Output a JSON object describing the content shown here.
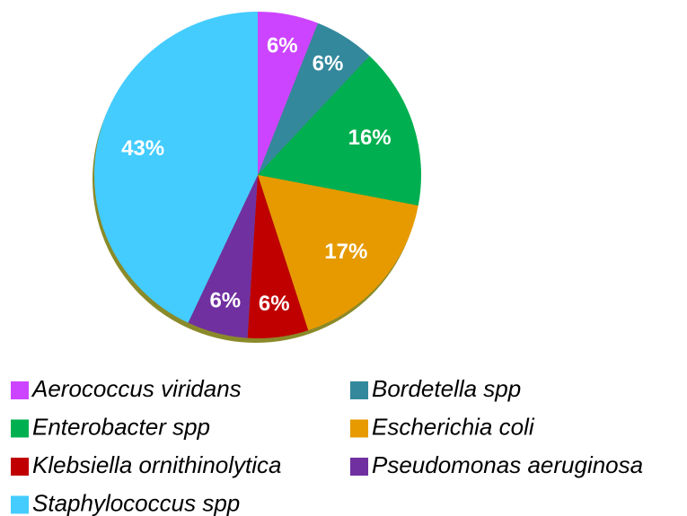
{
  "chart_data": {
    "type": "pie",
    "categories": [
      "Aerococcus viridans",
      "Bordetella spp",
      "Enterobacter spp",
      "Escherichia coli",
      "Klebsiella ornithinolytica",
      "Pseudomonas aeruginosa",
      "Staphylococcus spp"
    ],
    "values": [
      6,
      6,
      16,
      17,
      6,
      6,
      43
    ],
    "value_labels": [
      "6%",
      "6%",
      "16%",
      "17%",
      "6%",
      "6%",
      "43%"
    ],
    "colors": [
      "#cc44ff",
      "#33889c",
      "#00b050",
      "#e69a00",
      "#c00000",
      "#7030a0",
      "#44ccff"
    ],
    "legend": "bottom"
  }
}
